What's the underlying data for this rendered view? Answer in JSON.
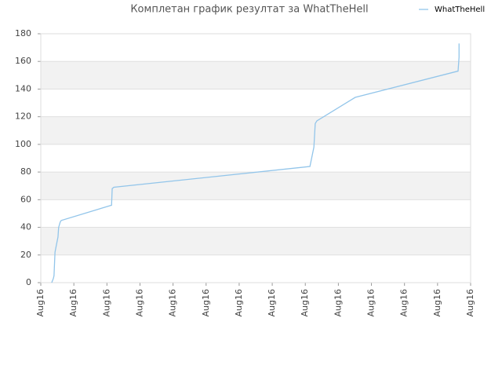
{
  "chart_data": {
    "type": "line",
    "title": "Комплетан график резултат за WhatTheHell",
    "x": [
      0.33,
      0.38,
      0.4,
      0.43,
      0.47,
      0.52,
      0.54,
      0.59,
      0.62,
      2.14,
      2.16,
      2.21,
      8.14,
      8.26,
      8.3,
      8.35,
      9.51,
      12.62,
      12.65,
      12.65
    ],
    "series": [
      {
        "name": "WhatTheHell",
        "color": "#92c5ea",
        "values": [
          0,
          3,
          5,
          22,
          27,
          33,
          40,
          44,
          45,
          56,
          68,
          69,
          84,
          98,
          115,
          117,
          134,
          153,
          163,
          173
        ]
      }
    ],
    "xlim": [
      0,
      13
    ],
    "xticks": [
      {
        "value": 0,
        "label": "Aug16"
      },
      {
        "value": 1,
        "label": "Aug16"
      },
      {
        "value": 2,
        "label": "Aug16"
      },
      {
        "value": 3,
        "label": "Aug16"
      },
      {
        "value": 4,
        "label": "Aug16"
      },
      {
        "value": 5,
        "label": "Aug16"
      },
      {
        "value": 6,
        "label": "Aug16"
      },
      {
        "value": 7,
        "label": "Aug16"
      },
      {
        "value": 8,
        "label": "Aug16"
      },
      {
        "value": 9,
        "label": "Aug16"
      },
      {
        "value": 10,
        "label": "Aug16"
      },
      {
        "value": 11,
        "label": "Aug16"
      },
      {
        "value": 12,
        "label": "Aug16"
      },
      {
        "value": 13,
        "label": "Aug16"
      }
    ],
    "ylim": [
      0,
      180
    ],
    "yticks": [
      0,
      20,
      40,
      60,
      80,
      100,
      120,
      140,
      160,
      180
    ],
    "grid": true,
    "legend": "upper-right"
  }
}
